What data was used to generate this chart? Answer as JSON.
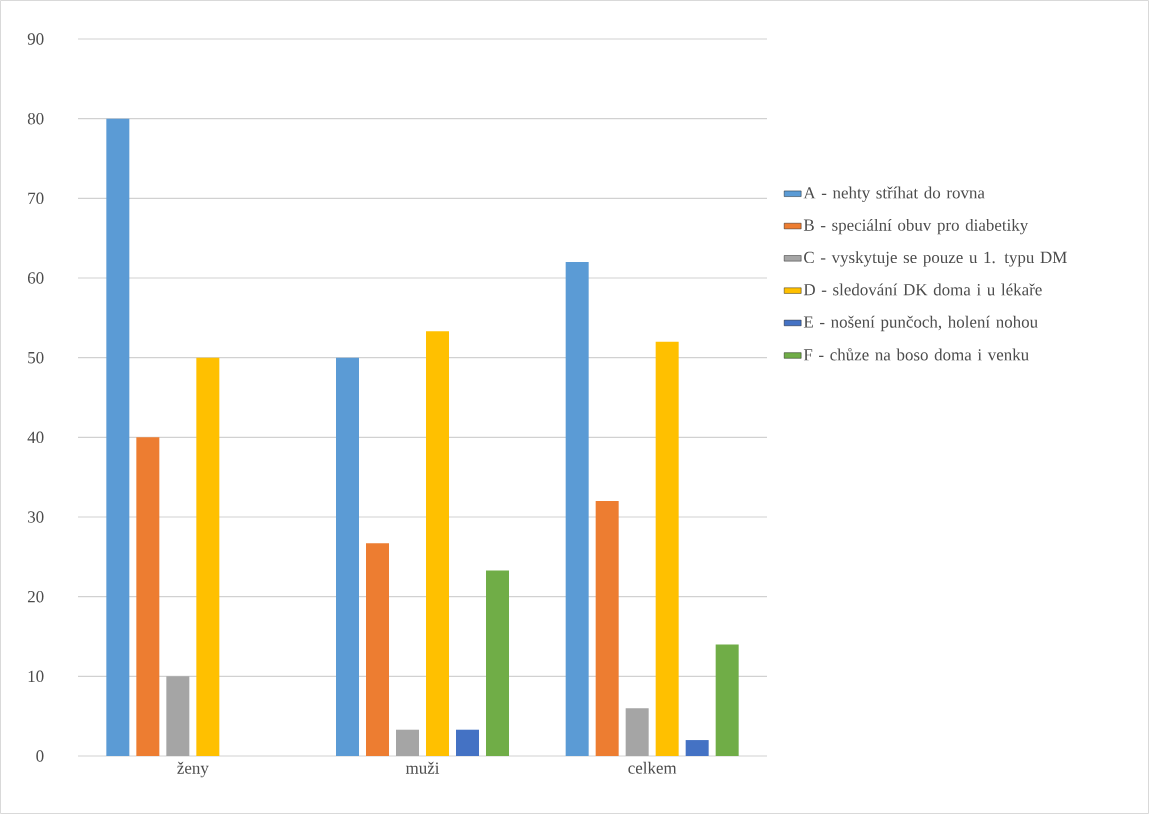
{
  "chart_data": {
    "type": "bar",
    "categories": [
      "ženy",
      "muži",
      "celkem"
    ],
    "series": [
      {
        "name": "A - nehty stříhat do rovna",
        "color": "#5b9bd5",
        "values": [
          80,
          50,
          62
        ]
      },
      {
        "name": "B - speciální obuv pro diabetiky",
        "color": "#ed7d31",
        "values": [
          40,
          26.7,
          32
        ]
      },
      {
        "name": "C - vyskytuje se pouze u 1. typu DM",
        "color": "#a5a5a5",
        "values": [
          10,
          3.3,
          6
        ]
      },
      {
        "name": "D - sledování DK doma i u lékaře",
        "color": "#ffc000",
        "values": [
          50,
          53.3,
          52
        ]
      },
      {
        "name": "E - nošení punčoch, holení nohou",
        "color": "#4472c4",
        "values": [
          null,
          3.3,
          2
        ]
      },
      {
        "name": "F - chůze na boso doma i venku",
        "color": "#70ad47",
        "values": [
          null,
          23.3,
          14
        ]
      }
    ],
    "ylim": [
      0,
      90
    ],
    "yticks": [
      0,
      10,
      20,
      30,
      40,
      50,
      60,
      70,
      80,
      90
    ],
    "grid": "y",
    "legend": "right"
  }
}
